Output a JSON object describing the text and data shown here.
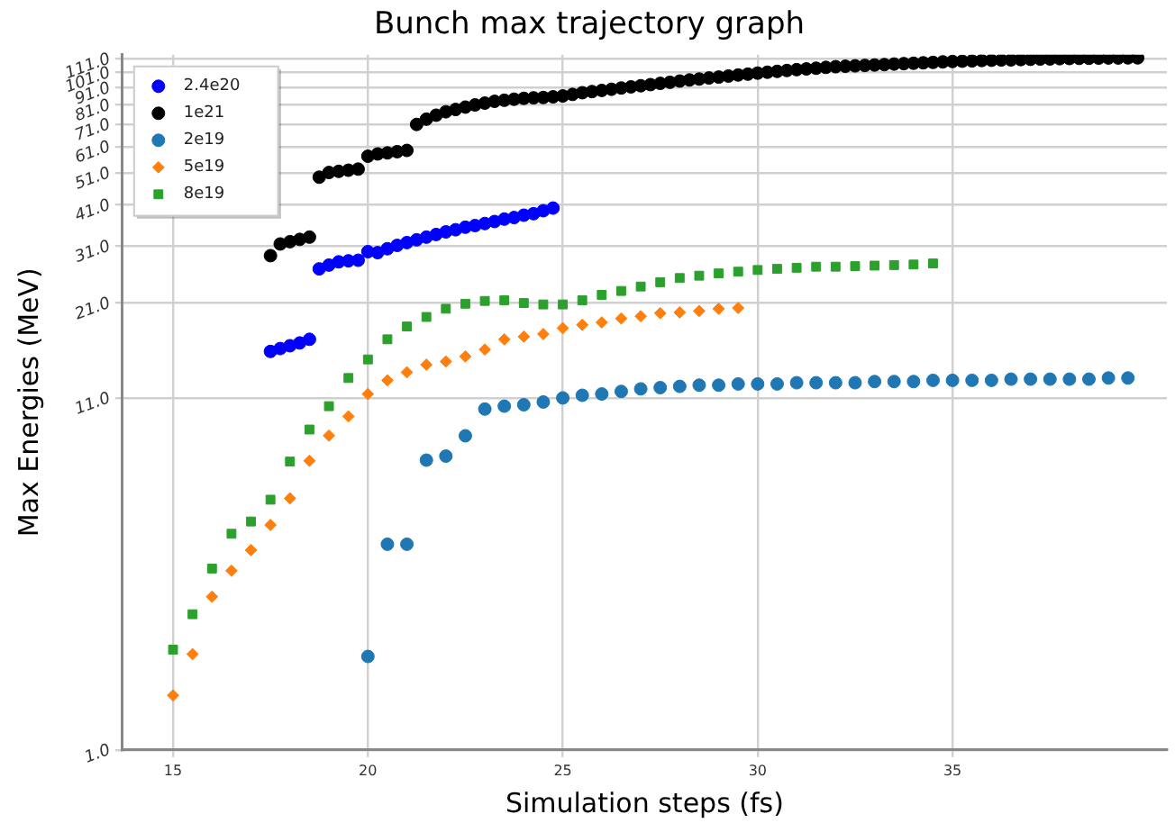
{
  "chart_data": {
    "type": "scatter",
    "title": "Bunch max trajectory graph",
    "xlabel": "Simulation steps (fs)",
    "ylabel": "Max Energies (MeV)",
    "xlim": [
      13.7,
      40.5
    ],
    "xticks": [
      15,
      20,
      25,
      30,
      35
    ],
    "ylim": [
      1,
      114
    ],
    "yticks": [
      {
        "value": 1,
        "label": "1.0"
      },
      {
        "value": 11,
        "label": "11.0"
      },
      {
        "value": 21,
        "label": "21.0"
      },
      {
        "value": 31,
        "label": "31.0"
      },
      {
        "value": 41,
        "label": "41.0"
      },
      {
        "value": 51,
        "label": "51.0"
      },
      {
        "value": 61,
        "label": "61.0"
      },
      {
        "value": 71,
        "label": "71.0"
      },
      {
        "value": 81,
        "label": "81.0"
      },
      {
        "value": 91,
        "label": "91.0"
      },
      {
        "value": 101,
        "label": "101.0"
      },
      {
        "value": 111,
        "label": "111.0"
      }
    ],
    "log": "y",
    "grid": true,
    "legend": "top left",
    "series": [
      {
        "name": "2.4e20",
        "color": "#0000ff",
        "marker": "circle",
        "x": [
          17.5,
          17.75,
          18,
          18.25,
          18.5,
          18.75,
          19,
          19.25,
          19.5,
          19.75,
          20,
          20.25,
          20.5,
          20.75,
          21,
          21.25,
          21.5,
          21.75,
          22,
          22.25,
          22.5,
          22.75,
          23,
          23.25,
          23.5,
          23.75,
          24,
          24.25,
          24.5,
          24.75
        ],
        "values": [
          15.1,
          15.4,
          15.7,
          16.0,
          16.4,
          26.5,
          27.2,
          27.8,
          28.0,
          28.1,
          29.8,
          29.6,
          30.4,
          31.1,
          31.7,
          32.3,
          32.9,
          33.5,
          34.1,
          34.6,
          35.2,
          35.6,
          36.1,
          36.6,
          37.2,
          37.6,
          38.2,
          38.6,
          39.4,
          40.1
        ]
      },
      {
        "name": "1e21",
        "color": "#000000",
        "marker": "circle",
        "x": [
          17.5,
          17.75,
          18,
          18.25,
          18.5,
          18.75,
          19,
          19.25,
          19.5,
          19.75,
          20,
          20.25,
          20.5,
          20.75,
          21,
          21.25,
          21.5,
          21.75,
          22,
          22.25,
          22.5,
          22.75,
          23,
          23.25,
          23.5,
          23.75,
          24,
          24.25,
          24.5,
          24.75,
          25,
          25.25,
          25.5,
          25.75,
          26,
          26.25,
          26.5,
          26.75,
          27,
          27.25,
          27.5,
          27.75,
          28,
          28.25,
          28.5,
          28.75,
          29,
          29.25,
          29.5,
          29.75,
          30,
          30.25,
          30.5,
          30.75,
          31,
          31.25,
          31.5,
          31.75,
          32,
          32.25,
          32.5,
          32.75,
          33,
          33.25,
          33.5,
          33.75,
          34,
          34.25,
          34.5,
          34.75,
          35,
          35.25,
          35.5,
          35.75,
          36,
          36.25,
          36.5,
          36.75,
          37,
          37.25,
          37.5,
          37.75,
          38,
          38.25,
          38.5,
          38.75,
          39,
          39.25,
          39.5,
          39.75
        ],
        "values": [
          29.0,
          31.4,
          31.9,
          32.4,
          32.9,
          49.5,
          51.1,
          51.5,
          51.9,
          52.3,
          57.1,
          58.0,
          58.4,
          58.9,
          59.4,
          70.9,
          73.5,
          75.5,
          77.3,
          78.5,
          79.8,
          81.0,
          82.0,
          83.0,
          83.6,
          84.2,
          84.7,
          85.0,
          85.2,
          85.6,
          86.1,
          87.0,
          88.0,
          88.7,
          89.4,
          90.1,
          90.9,
          91.6,
          92.3,
          93.0,
          93.8,
          94.5,
          95.3,
          96.0,
          96.6,
          97.3,
          97.9,
          98.6,
          99.3,
          99.9,
          100.6,
          101.2,
          101.8,
          102.4,
          103.0,
          103.5,
          104.0,
          104.6,
          105.1,
          105.4,
          105.7,
          106.0,
          106.3,
          106.6,
          107.0,
          107.3,
          107.6,
          107.9,
          108.2,
          108.6,
          108.9,
          109.1,
          109.3,
          109.6,
          109.8,
          110.0,
          110.1,
          110.3,
          110.5,
          110.7,
          110.8,
          111.0,
          111.1,
          111.2,
          111.3,
          111.4,
          111.5,
          111.5,
          111.6,
          111.6
        ]
      },
      {
        "name": "2e19",
        "color": "#1f77b4",
        "marker": "circle",
        "x": [
          20,
          20.5,
          21,
          21.5,
          22,
          22.5,
          23,
          23.5,
          24,
          24.5,
          25,
          25.5,
          26,
          26.5,
          27,
          27.5,
          28,
          28.5,
          29,
          29.5,
          30,
          30.5,
          31,
          31.5,
          32,
          32.5,
          33,
          33.5,
          34,
          34.5,
          35,
          35.5,
          36,
          36.5,
          37,
          37.5,
          38,
          38.5,
          39,
          39.5
        ],
        "values": [
          1.89,
          4.06,
          4.06,
          7.2,
          7.4,
          8.5,
          10.2,
          10.4,
          10.5,
          10.7,
          11.0,
          11.2,
          11.3,
          11.5,
          11.7,
          11.8,
          11.9,
          12.0,
          12.0,
          12.1,
          12.1,
          12.1,
          12.2,
          12.2,
          12.2,
          12.2,
          12.3,
          12.3,
          12.3,
          12.4,
          12.4,
          12.4,
          12.4,
          12.5,
          12.5,
          12.5,
          12.5,
          12.5,
          12.6,
          12.6
        ]
      },
      {
        "name": "5e19",
        "color": "#ff7f0e",
        "marker": "diamond",
        "x": [
          15,
          15.5,
          16,
          16.5,
          17,
          17.5,
          18,
          18.5,
          19,
          19.5,
          20,
          20.5,
          21,
          21.5,
          22,
          22.5,
          23,
          23.5,
          24,
          24.5,
          25,
          25.5,
          26,
          26.5,
          27,
          27.5,
          28,
          28.5,
          29,
          29.5
        ],
        "values": [
          1.45,
          1.92,
          2.84,
          3.39,
          3.9,
          4.63,
          5.55,
          7.17,
          8.51,
          9.7,
          11.3,
          12.4,
          13.1,
          13.8,
          14.1,
          14.6,
          15.3,
          16.4,
          16.7,
          17.0,
          17.7,
          18.1,
          18.4,
          18.9,
          19.2,
          19.6,
          19.7,
          19.9,
          20.2,
          20.3
        ]
      },
      {
        "name": "8e19",
        "color": "#2ca02c",
        "marker": "square",
        "x": [
          15,
          15.5,
          16,
          16.5,
          17,
          17.5,
          18,
          18.5,
          19,
          19.5,
          20,
          20.5,
          21,
          21.5,
          22,
          22.5,
          23,
          23.5,
          24,
          24.5,
          25,
          25.5,
          26,
          26.5,
          27,
          27.5,
          28,
          28.5,
          29,
          29.5,
          30,
          30.5,
          31,
          31.5,
          32,
          32.5,
          33,
          33.5,
          34,
          34.5
        ],
        "values": [
          1.98,
          2.52,
          3.44,
          4.36,
          4.74,
          5.5,
          7.13,
          8.87,
          10.4,
          12.6,
          14.3,
          16.4,
          17.9,
          19.1,
          20.2,
          20.9,
          21.3,
          21.4,
          21.0,
          20.8,
          20.8,
          21.4,
          22.2,
          22.8,
          23.5,
          24.2,
          24.9,
          25.3,
          25.7,
          26.0,
          26.3,
          26.5,
          26.7,
          26.9,
          26.9,
          27.0,
          27.1,
          27.2,
          27.3,
          27.5
        ]
      }
    ]
  }
}
